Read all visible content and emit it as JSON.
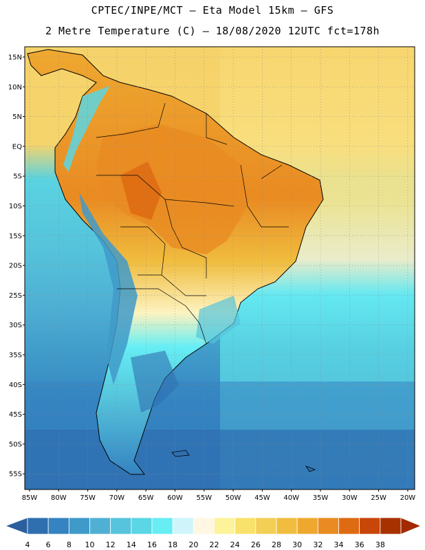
{
  "header": {
    "line1": "CPTEC/INPE/MCT –  Eta Model 15km – GFS",
    "line2": "2 Metre Temperature (C) – 18/08/2020 12UTC fct=178h"
  },
  "map": {
    "lat_labels": [
      "15N",
      "10N",
      "5N",
      "EQ",
      "5S",
      "10S",
      "15S",
      "20S",
      "25S",
      "30S",
      "35S",
      "40S",
      "45S",
      "50S",
      "55S"
    ],
    "lon_labels": [
      "85W",
      "80W",
      "75W",
      "70W",
      "65W",
      "60W",
      "55W",
      "50W",
      "45W",
      "40W",
      "35W",
      "30W",
      "25W",
      "20W"
    ]
  },
  "colorbar": {
    "labels": [
      "4",
      "6",
      "8",
      "10",
      "12",
      "14",
      "16",
      "18",
      "20",
      "22",
      "24",
      "26",
      "28",
      "30",
      "32",
      "34",
      "36",
      "38"
    ],
    "colors": [
      "#2f6fb0",
      "#3583c1",
      "#3f9ac9",
      "#4fb0d4",
      "#55c4dc",
      "#5ad6e4",
      "#66eef4",
      "#cff5fb",
      "#fff7e2",
      "#fdf39a",
      "#f9e26b",
      "#f4cf56",
      "#f0bd3f",
      "#eea830",
      "#e98b22",
      "#de6a12",
      "#c84608",
      "#a83100"
    ],
    "low_color": "#2c5f9e",
    "high_color": "#a32a00"
  }
}
